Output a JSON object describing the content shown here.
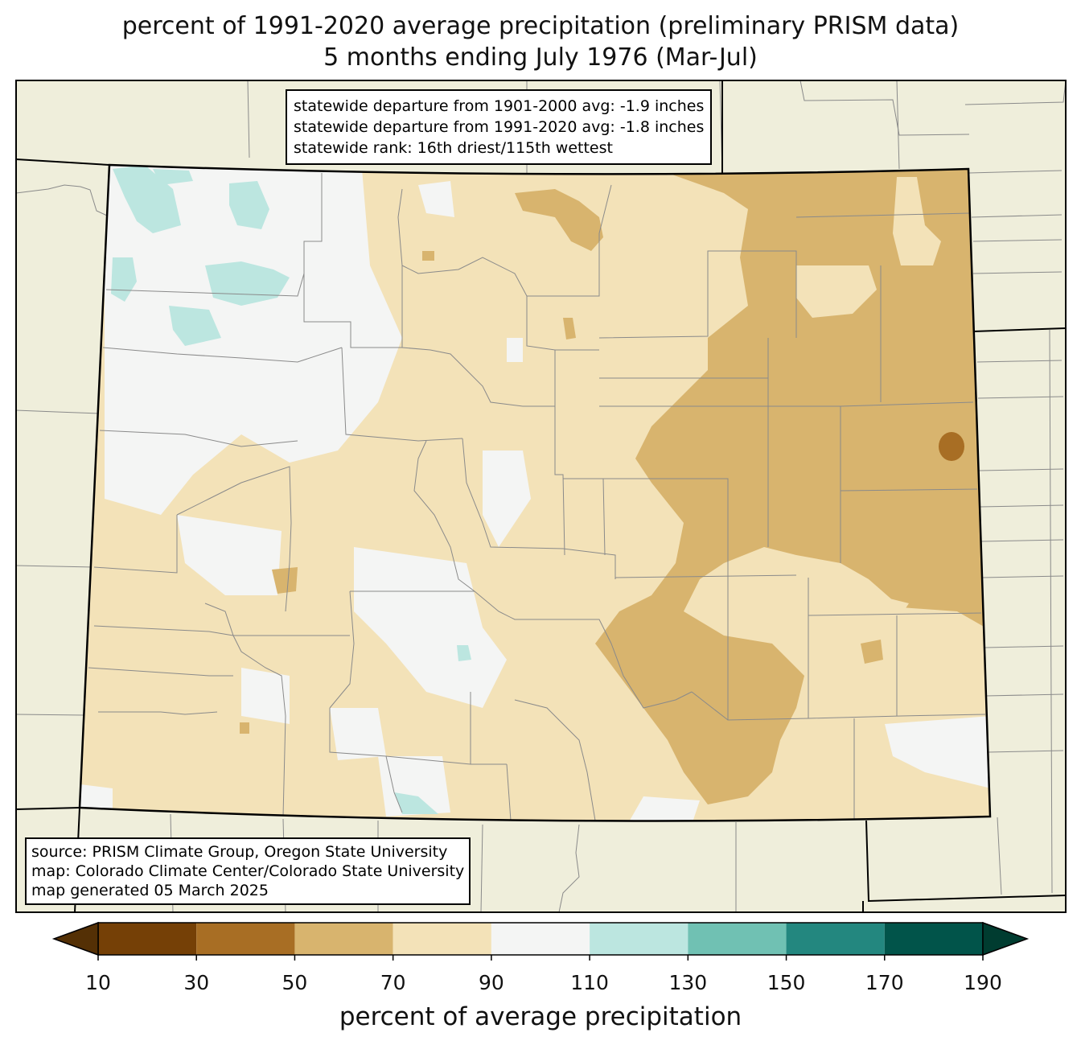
{
  "title_line1": "percent of 1991-2020 average precipitation (preliminary PRISM data)",
  "title_line2": "5 months ending July 1976 (Mar-Jul)",
  "stats": [
    "statewide departure from 1901-2000 avg: -1.9 inches",
    "statewide departure from 1991-2020 avg: -1.8 inches",
    "statewide rank: 16th driest/115th wettest"
  ],
  "source": [
    "source: PRISM Climate Group, Oregon State University",
    "map: Colorado Climate Center/Colorado State University",
    "map generated 05 March 2025"
  ],
  "colorbar": {
    "label": "percent of average precipitation",
    "ticks": [
      "10",
      "30",
      "50",
      "70",
      "90",
      "110",
      "130",
      "150",
      "170",
      "190"
    ],
    "under_color": "#543005",
    "over_color": "#003c30",
    "bins": [
      {
        "from": 10,
        "to": 30,
        "color": "#754006"
      },
      {
        "from": 30,
        "to": 50,
        "color": "#a86e24"
      },
      {
        "from": 50,
        "to": 70,
        "color": "#d8b46e"
      },
      {
        "from": 70,
        "to": 90,
        "color": "#f3e2b8"
      },
      {
        "from": 90,
        "to": 110,
        "color": "#f4f5f4"
      },
      {
        "from": 110,
        "to": 130,
        "color": "#bce6e0"
      },
      {
        "from": 130,
        "to": 150,
        "color": "#70c1b3"
      },
      {
        "from": 150,
        "to": 170,
        "color": "#23877f"
      },
      {
        "from": 170,
        "to": 190,
        "color": "#01544a"
      }
    ]
  },
  "colors": {
    "background_land": "#efeedb",
    "county_lines": "#8a8a8a",
    "state_lines": "#000000"
  }
}
